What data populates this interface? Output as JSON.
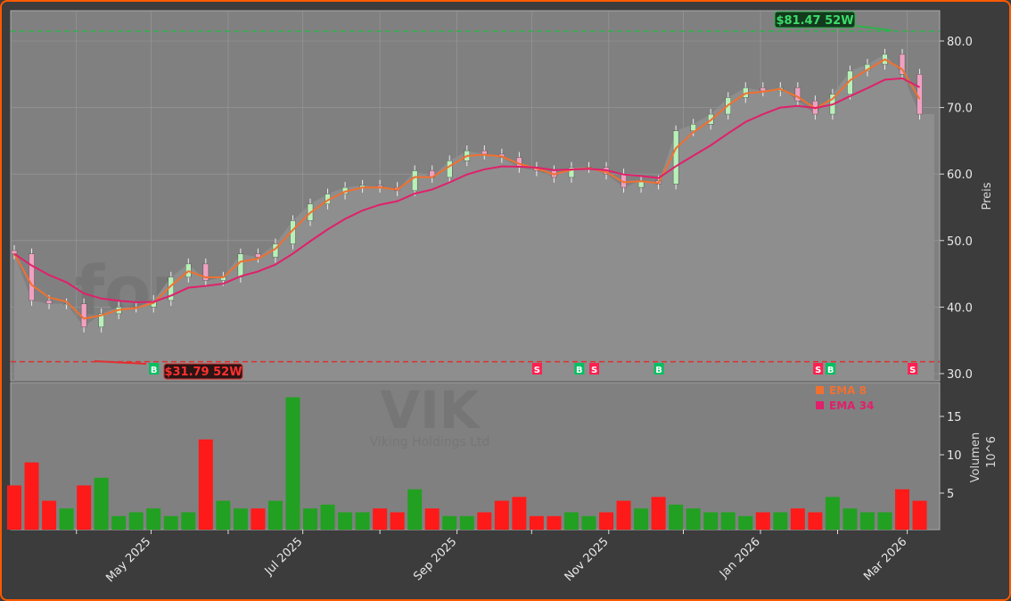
{
  "chart_data": {
    "type": "candlestick",
    "ticker": "VIK",
    "company": "Viking Holdings Ltd",
    "watermark": "forexsignale.trade",
    "ylabel": "Preis",
    "volume_label": "Volumen",
    "volume_unit": "10^6",
    "ylim": [
      29,
      84.5
    ],
    "yticks": [
      "30.0",
      "40.0",
      "50.0",
      "60.0",
      "70.0",
      "80.0"
    ],
    "volume_ticks": [
      "5",
      "10",
      "15"
    ],
    "xtick_labels": [
      {
        "label": "May 2025",
        "date": "2025-05-01"
      },
      {
        "label": "Jul 2025",
        "date": "2025-07-01"
      },
      {
        "label": "Sep 2025",
        "date": "2025-09-01"
      },
      {
        "label": "Nov 2025",
        "date": "2025-11-01"
      },
      {
        "label": "Jan 2026",
        "date": "2026-01-01"
      },
      {
        "label": "Mar 2026",
        "date": "2026-03-01"
      }
    ],
    "minor_ticks": [
      "2025-04-01",
      "2025-06-01",
      "2025-08-01",
      "2025-10-01",
      "2025-12-01",
      "2026-02-01"
    ],
    "dates": [
      "2025-03-07",
      "2025-03-14",
      "2025-03-21",
      "2025-03-28",
      "2025-04-04",
      "2025-04-11",
      "2025-04-18",
      "2025-04-25",
      "2025-05-02",
      "2025-05-09",
      "2025-05-16",
      "2025-05-23",
      "2025-05-30",
      "2025-06-06",
      "2025-06-13",
      "2025-06-20",
      "2025-06-27",
      "2025-07-04",
      "2025-07-11",
      "2025-07-18",
      "2025-07-25",
      "2025-08-01",
      "2025-08-08",
      "2025-08-15",
      "2025-08-22",
      "2025-08-29",
      "2025-09-05",
      "2025-09-12",
      "2025-09-19",
      "2025-09-26",
      "2025-10-03",
      "2025-10-10",
      "2025-10-17",
      "2025-10-24",
      "2025-10-31",
      "2025-11-07",
      "2025-11-14",
      "2025-11-21",
      "2025-11-28",
      "2025-12-05",
      "2025-12-12",
      "2025-12-19",
      "2025-12-26",
      "2026-01-02",
      "2026-01-09",
      "2026-01-16",
      "2026-01-23",
      "2026-01-30",
      "2026-02-06",
      "2026-02-13",
      "2026-02-20",
      "2026-02-27",
      "2026-03-06"
    ],
    "close": [
      48,
      41,
      40.5,
      40.5,
      37,
      39,
      40,
      40,
      41,
      44.5,
      46.5,
      44,
      44.5,
      48,
      47.5,
      49.5,
      53,
      55.5,
      57,
      58,
      58.3,
      58,
      57.5,
      60.5,
      59.5,
      62,
      63.5,
      63,
      62.5,
      61,
      60.5,
      59.5,
      61,
      61,
      60,
      58,
      59,
      58.5,
      66.5,
      67.5,
      69,
      71.5,
      73,
      72.5,
      73,
      71,
      69,
      72,
      75.5,
      76.5,
      78,
      75,
      69
    ],
    "volume": [
      6,
      9,
      4,
      3,
      6,
      7,
      2,
      2.5,
      3,
      2,
      2.5,
      12,
      4,
      3,
      3,
      4,
      17.5,
      3,
      3.5,
      2.5,
      2.5,
      3,
      2.5,
      5.5,
      3,
      2,
      2,
      2.5,
      4,
      4.5,
      2,
      2,
      2.5,
      2,
      2.5,
      4,
      3,
      4.5,
      3.5,
      3,
      2.5,
      2.5,
      2,
      2.5,
      2.5,
      3,
      2.5,
      4.5,
      3,
      2.5,
      2.5,
      5.5,
      4
    ],
    "high_52w": {
      "value": 81.47,
      "label": "$81.47 52W",
      "date": "2026-02-24"
    },
    "low_52w": {
      "value": 31.79,
      "label": "$31.79 52W",
      "date": "2025-04-07"
    },
    "signals": [
      {
        "type": "B",
        "date": "2025-05-02"
      },
      {
        "type": "S",
        "date": "2025-10-03"
      },
      {
        "type": "B",
        "date": "2025-10-20"
      },
      {
        "type": "S",
        "date": "2025-10-26"
      },
      {
        "type": "B",
        "date": "2025-11-21"
      },
      {
        "type": "S",
        "date": "2026-01-24"
      },
      {
        "type": "B",
        "date": "2026-01-27"
      },
      {
        "type": "S",
        "date": "2026-03-03"
      }
    ],
    "legend": [
      {
        "name": "EMA 8",
        "color": "#f07030"
      },
      {
        "name": "EMA 34",
        "color": "#e0206a"
      }
    ],
    "legend_placement": "top-right of volume panel",
    "colors": {
      "up": "#22a022",
      "down": "#ff1a1a",
      "buy": "#00c060",
      "sell": "#ff2050",
      "panel": "#808080",
      "area": "#8e8e8e",
      "border": "#ff5a00"
    },
    "grid": true
  }
}
